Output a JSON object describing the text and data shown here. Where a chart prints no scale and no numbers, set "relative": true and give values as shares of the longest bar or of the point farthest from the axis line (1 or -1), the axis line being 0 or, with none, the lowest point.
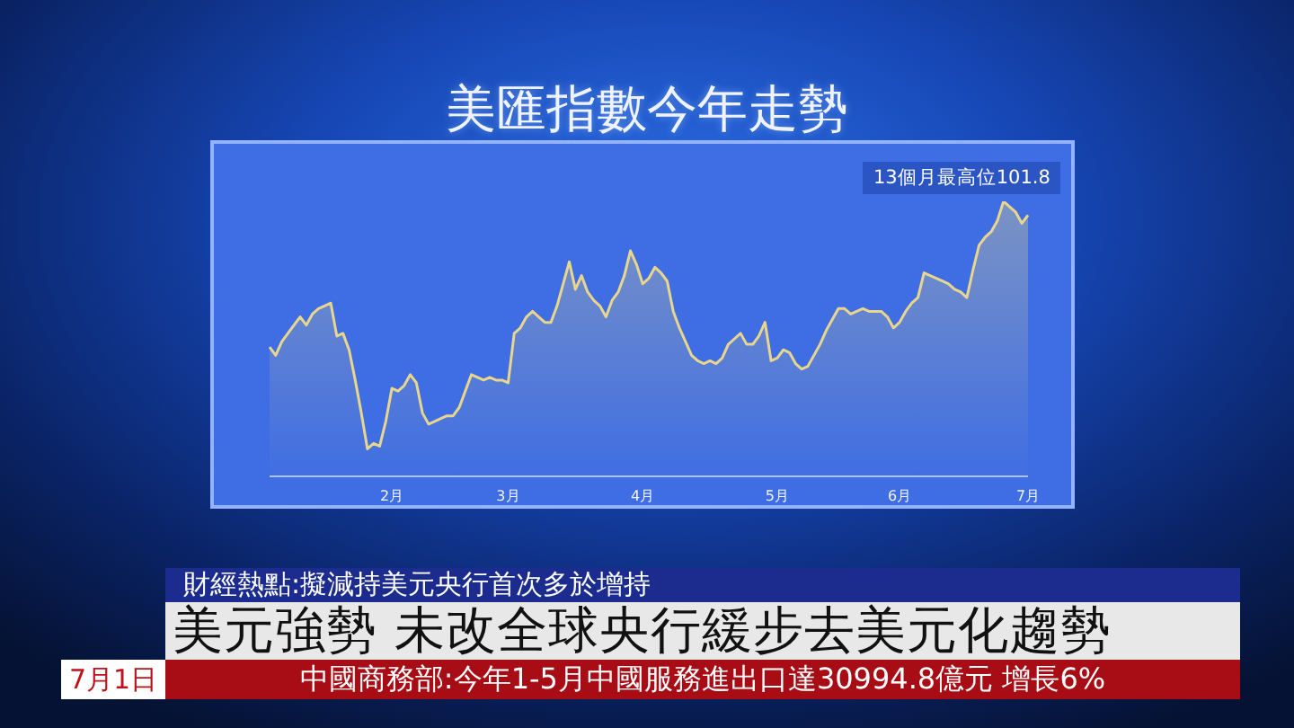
{
  "chart_data": {
    "type": "area",
    "title": "美匯指數今年走勢",
    "relative": true,
    "categories": [
      null,
      null,
      null,
      null,
      null,
      null,
      null,
      null,
      null,
      null,
      null,
      null,
      null,
      null,
      null,
      null,
      null,
      null,
      null,
      null,
      "2月",
      null,
      null,
      null,
      null,
      null,
      null,
      null,
      null,
      null,
      null,
      null,
      null,
      null,
      null,
      null,
      null,
      null,
      null,
      "3月",
      null,
      null,
      null,
      null,
      null,
      null,
      null,
      null,
      null,
      null,
      null,
      null,
      null,
      null,
      null,
      null,
      null,
      null,
      null,
      null,
      null,
      "4月",
      null,
      null,
      null,
      null,
      null,
      null,
      null,
      null,
      null,
      null,
      null,
      null,
      null,
      null,
      null,
      null,
      null,
      null,
      null,
      null,
      null,
      "5月",
      null,
      null,
      null,
      null,
      null,
      null,
      null,
      null,
      null,
      null,
      null,
      null,
      null,
      null,
      null,
      null,
      null,
      null,
      null,
      "6月",
      null,
      null,
      null,
      null,
      null,
      null,
      null,
      null,
      null,
      null,
      null,
      null,
      null,
      null,
      null,
      null,
      null,
      null,
      null,
      null,
      "7月"
    ],
    "color": "#e8d68c",
    "values": [
      0.47,
      0.44,
      0.49,
      0.52,
      0.55,
      0.58,
      0.55,
      0.59,
      0.61,
      0.62,
      0.63,
      0.51,
      0.52,
      0.46,
      0.35,
      0.23,
      0.1,
      0.12,
      0.11,
      0.2,
      0.32,
      0.31,
      0.33,
      0.37,
      0.34,
      0.23,
      0.19,
      0.2,
      0.21,
      0.22,
      0.22,
      0.25,
      0.31,
      0.37,
      0.36,
      0.35,
      0.36,
      0.35,
      0.35,
      0.34,
      0.52,
      0.54,
      0.58,
      0.6,
      0.58,
      0.56,
      0.56,
      0.62,
      0.7,
      0.78,
      0.68,
      0.73,
      0.67,
      0.64,
      0.62,
      0.58,
      0.64,
      0.67,
      0.73,
      0.82,
      0.77,
      0.7,
      0.72,
      0.76,
      0.74,
      0.71,
      0.6,
      0.54,
      0.49,
      0.44,
      0.42,
      0.41,
      0.42,
      0.41,
      0.43,
      0.48,
      0.5,
      0.52,
      0.48,
      0.48,
      0.51,
      0.56,
      0.42,
      0.43,
      0.46,
      0.45,
      0.41,
      0.39,
      0.4,
      0.44,
      0.48,
      0.53,
      0.57,
      0.61,
      0.61,
      0.59,
      0.6,
      0.61,
      0.6,
      0.6,
      0.6,
      0.58,
      0.54,
      0.56,
      0.6,
      0.63,
      0.65,
      0.74,
      0.73,
      0.72,
      0.71,
      0.7,
      0.68,
      0.67,
      0.65,
      0.75,
      0.84,
      0.87,
      0.89,
      0.93,
      1,
      0.98,
      0.96,
      0.92,
      0.95
    ],
    "annotations": [
      "13個月最高位101.8",
      "財經熱點:擬減持美元央行首次多於增持",
      "美元強勢 未改全球央行緩步去美元化趨勢",
      "7月1日",
      "中國商務部:今年1-5月中國服務進出口達30994.8億元 增長6%"
    ]
  }
}
